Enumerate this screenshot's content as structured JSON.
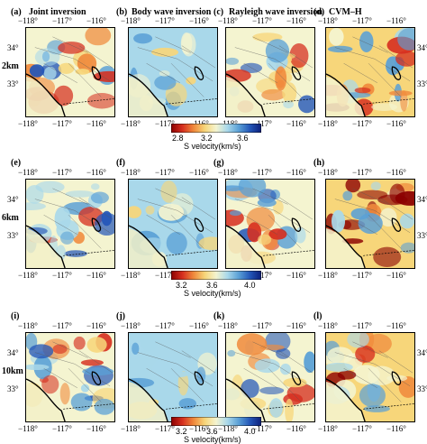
{
  "rows": [
    {
      "depth": "2km",
      "panels": [
        {
          "label": "(a)",
          "title": "Joint inversion",
          "style": "joint"
        },
        {
          "label": "(b)",
          "title": "Body wave inversion",
          "style": "body"
        },
        {
          "label": "(c)",
          "title": "Rayleigh wave inversion",
          "style": "rayleigh"
        },
        {
          "label": "(d)",
          "title": "CVM–H",
          "style": "cvm"
        }
      ],
      "colorbar": {
        "ticks": [
          "2.8",
          "3.2",
          "3.6"
        ],
        "label": "S velocity(km/s)"
      }
    },
    {
      "depth": "6km",
      "panels": [
        {
          "label": "(e)",
          "title": "",
          "style": "joint"
        },
        {
          "label": "(f)",
          "title": "",
          "style": "body"
        },
        {
          "label": "(g)",
          "title": "",
          "style": "rayleigh"
        },
        {
          "label": "(h)",
          "title": "",
          "style": "cvm"
        }
      ],
      "colorbar": {
        "ticks": [
          "3.2",
          "3.6",
          "4.0"
        ],
        "label": "S velocity(km/s)"
      }
    },
    {
      "depth": "10km",
      "panels": [
        {
          "label": "(i)",
          "title": "",
          "style": "joint"
        },
        {
          "label": "(j)",
          "title": "",
          "style": "body"
        },
        {
          "label": "(k)",
          "title": "",
          "style": "rayleigh"
        },
        {
          "label": "(l)",
          "title": "",
          "style": "cvm"
        }
      ],
      "colorbar": {
        "ticks": [
          "3.2",
          "3.6",
          "4.0"
        ],
        "label": "S velocity(km/s)"
      }
    }
  ],
  "lon_ticks": [
    "−118°",
    "−117°",
    "−116°"
  ],
  "lat_ticks": [
    "34°",
    "33°"
  ],
  "colormap": [
    "#8b0000",
    "#d62f1f",
    "#f08a3c",
    "#f7d67a",
    "#f4f4d0",
    "#a9d8ea",
    "#5aa0d6",
    "#2356b8",
    "#0b1f7a"
  ]
}
